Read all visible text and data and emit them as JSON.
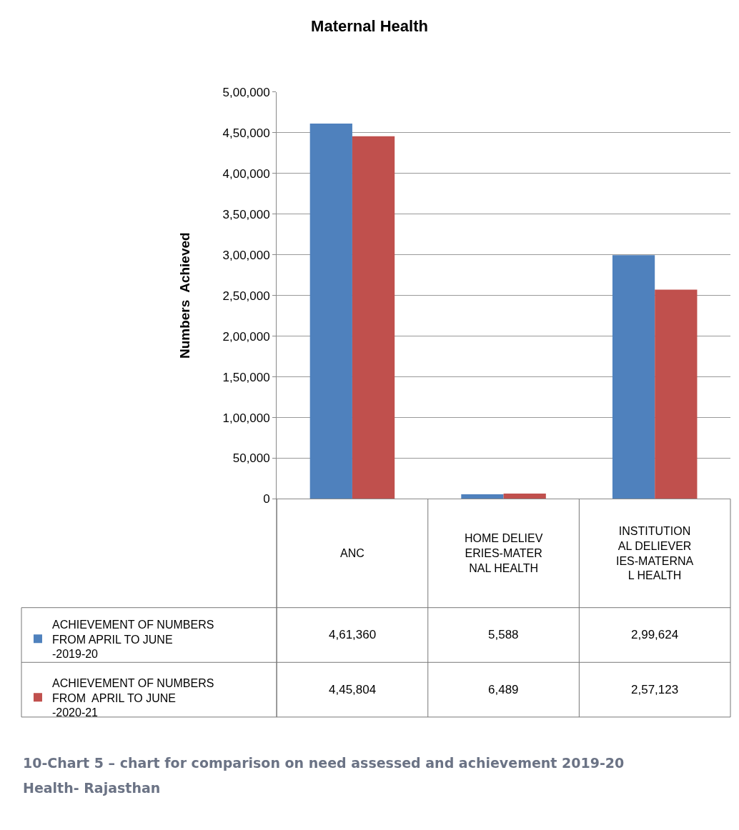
{
  "chart_data": {
    "type": "bar",
    "title": "Maternal Health",
    "ylabel": "Numbers  Achieved",
    "categories": [
      "ANC",
      "HOME DELIEVERIES-MATERNAL HEALTH",
      "INSTITUTIONAL DELIEVERIES-MATERNAL HEALTH"
    ],
    "series": [
      {
        "name": "ACHIEVEMENT OF NUMBERS FROM APRIL TO JUNE -2019-20",
        "color": "#4f81bd",
        "values": [
          461360,
          5588,
          299624
        ],
        "value_labels": [
          "4,61,360",
          "5,588",
          "2,99,624"
        ]
      },
      {
        "name": "ACHIEVEMENT OF NUMBERS FROM  APRIL TO JUNE -2020-21",
        "color": "#c0504d",
        "values": [
          445804,
          6489,
          257123
        ],
        "value_labels": [
          "4,45,804",
          "6,489",
          "2,57,123"
        ]
      }
    ],
    "ylim": [
      0,
      500000
    ],
    "yticks": [
      {
        "value": 0,
        "label": "0"
      },
      {
        "value": 50000,
        "label": "50,000"
      },
      {
        "value": 100000,
        "label": "1,00,000"
      },
      {
        "value": 150000,
        "label": "1,50,000"
      },
      {
        "value": 200000,
        "label": "2,00,000"
      },
      {
        "value": 250000,
        "label": "2,50,000"
      },
      {
        "value": 300000,
        "label": "3,00,000"
      },
      {
        "value": 350000,
        "label": "3,50,000"
      },
      {
        "value": 400000,
        "label": "4,00,000"
      },
      {
        "value": 450000,
        "label": "4,50,000"
      },
      {
        "value": 500000,
        "label": "5,00,000"
      }
    ],
    "grid": "y",
    "legend": "left",
    "tick_labels": "y",
    "annotations": [
      "10-Chart 5 – chart for comparison on need assessed and achievement 2019-20",
      "Health- Rajasthan"
    ]
  }
}
